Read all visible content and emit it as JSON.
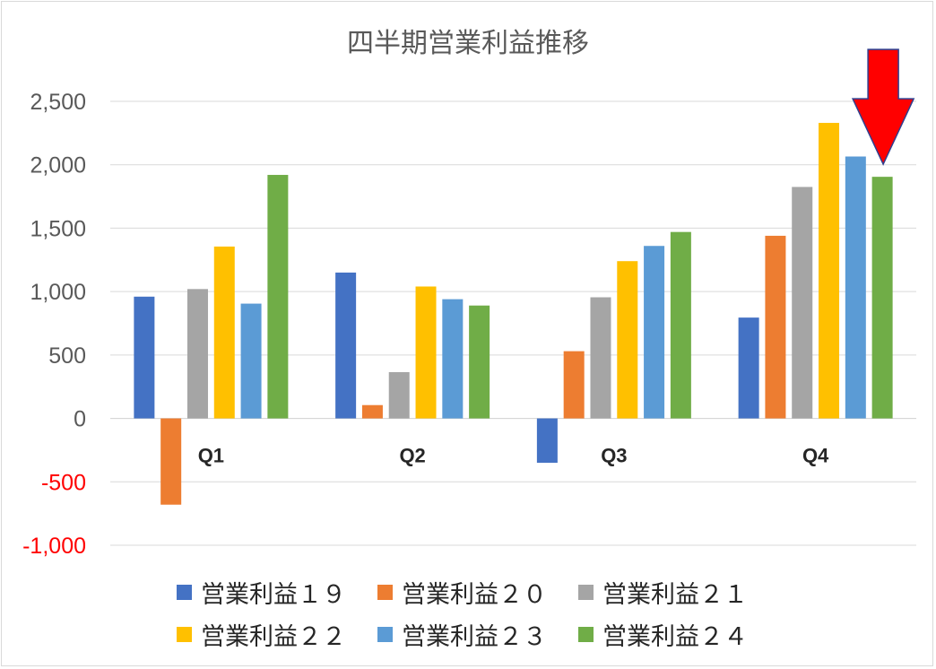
{
  "chart_data": {
    "type": "bar",
    "title": "四半期営業利益推移",
    "categories": [
      "Q1",
      "Q2",
      "Q3",
      "Q4"
    ],
    "ylim": [
      -1000,
      2500
    ],
    "yticks": [
      2500,
      2000,
      1500,
      1000,
      500,
      0,
      -500,
      -1000
    ],
    "ytick_labels": [
      "2,500",
      "2,000",
      "1,500",
      "1,000",
      "500",
      "0",
      "-500",
      "-1,000"
    ],
    "negative_tick_color": "#ff0000",
    "grid": true,
    "legend_position": "bottom",
    "series": [
      {
        "name": "営業利益１９",
        "color": "#4472c4",
        "values": [
          960,
          1150,
          -350,
          795
        ]
      },
      {
        "name": "営業利益２０",
        "color": "#ed7d31",
        "values": [
          -680,
          105,
          530,
          1440
        ]
      },
      {
        "name": "営業利益２１",
        "color": "#a5a5a5",
        "values": [
          1020,
          365,
          955,
          1825
        ]
      },
      {
        "name": "営業利益２２",
        "color": "#ffc000",
        "values": [
          1355,
          1040,
          1240,
          2330
        ]
      },
      {
        "name": "営業利益２３",
        "color": "#5b9bd5",
        "values": [
          905,
          940,
          1360,
          2065
        ]
      },
      {
        "name": "営業利益２４",
        "color": "#70ad47",
        "values": [
          1920,
          890,
          1470,
          1905
        ]
      }
    ],
    "annotation": {
      "shape": "down-arrow",
      "color": "#ff0000",
      "target": {
        "category": "Q4",
        "series": "営業利益２４"
      }
    }
  }
}
